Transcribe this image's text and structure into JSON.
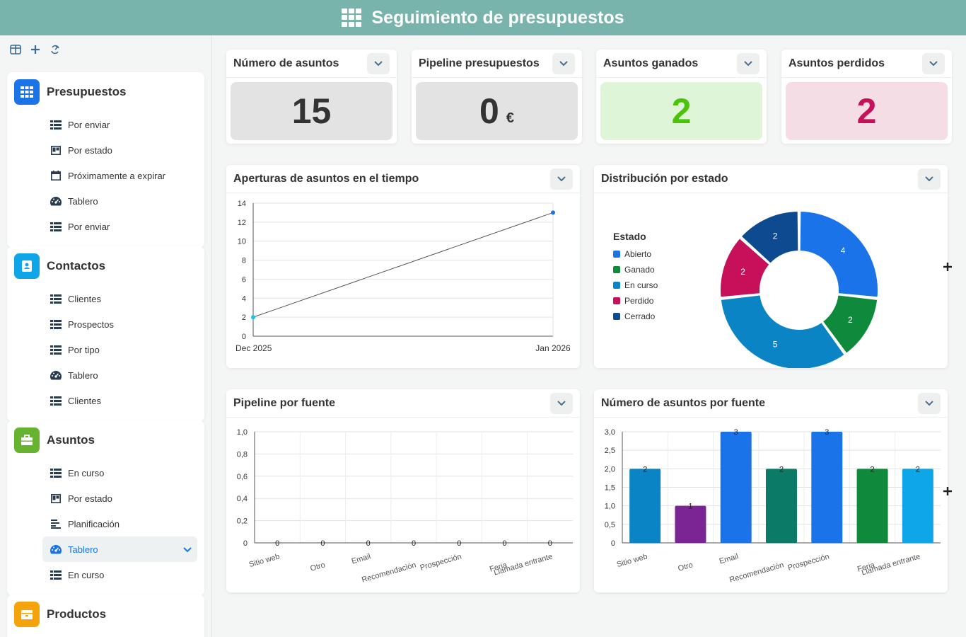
{
  "header": {
    "title": "Seguimiento de presupuestos"
  },
  "sidebar": {
    "sections": [
      {
        "title": "Presupuestos",
        "icon": "grid-icon",
        "color": "#1a73e8",
        "items": [
          {
            "label": "Por enviar",
            "icon": "list-icon"
          },
          {
            "label": "Por estado",
            "icon": "kanban-icon"
          },
          {
            "label": "Próximamente a expirar",
            "icon": "calendar-icon"
          },
          {
            "label": "Tablero",
            "icon": "dashboard-icon"
          },
          {
            "label": "Por enviar",
            "icon": "list-icon"
          }
        ]
      },
      {
        "title": "Contactos",
        "icon": "contact-card-icon",
        "color": "#0ea5e9",
        "items": [
          {
            "label": "Clientes",
            "icon": "list-icon"
          },
          {
            "label": "Prospectos",
            "icon": "list-icon"
          },
          {
            "label": "Por tipo",
            "icon": "list-icon"
          },
          {
            "label": "Tablero",
            "icon": "dashboard-icon"
          },
          {
            "label": "Clientes",
            "icon": "list-icon"
          }
        ]
      },
      {
        "title": "Asuntos",
        "icon": "briefcase-icon",
        "color": "#65b32e",
        "items": [
          {
            "label": "En curso",
            "icon": "list-icon"
          },
          {
            "label": "Por estado",
            "icon": "kanban-icon"
          },
          {
            "label": "Planificación",
            "icon": "gantt-icon"
          },
          {
            "label": "Tablero",
            "icon": "dashboard-icon",
            "active": true
          },
          {
            "label": "En curso",
            "icon": "list-icon"
          }
        ]
      },
      {
        "title": "Productos",
        "icon": "box-icon",
        "color": "#f5a30a",
        "items": []
      }
    ]
  },
  "kpis": [
    {
      "title": "Número de asuntos",
      "value": "15",
      "unit": "",
      "bg": "#e3e3e3",
      "color": "#333333"
    },
    {
      "title": "Pipeline presupuestos",
      "value": "0",
      "unit": "€",
      "bg": "#e3e3e3",
      "color": "#333333"
    },
    {
      "title": "Asuntos ganados",
      "value": "2",
      "unit": "",
      "bg": "#dff5d8",
      "color": "#4bc30b"
    },
    {
      "title": "Asuntos perdidos",
      "value": "2",
      "unit": "",
      "bg": "#f5dde5",
      "color": "#c6115a"
    }
  ],
  "widgets": {
    "aperturas_title": "Aperturas de asuntos en el tiempo",
    "distribucion_title": "Distribución por estado",
    "pipeline_title": "Pipeline por fuente",
    "numero_title": "Número de asuntos por fuente"
  },
  "chart_data": [
    {
      "type": "line",
      "title": "Aperturas de asuntos en el tiempo",
      "x": [
        "Dec 2025",
        "Jan 2026"
      ],
      "series": [
        {
          "values": [
            2,
            13
          ]
        }
      ],
      "ylim": [
        0,
        14
      ],
      "yticks": [
        0,
        2,
        4,
        6,
        8,
        10,
        12,
        14
      ],
      "grid": true
    },
    {
      "type": "pie",
      "title": "Distribución por estado",
      "legend_title": "Estado",
      "legend_position": "left",
      "categories": [
        "Abierto",
        "Ganado",
        "En curso",
        "Perdido",
        "Cerrado"
      ],
      "values": [
        4,
        2,
        5,
        2,
        2
      ],
      "colors": [
        "#1a73e8",
        "#0f8a3c",
        "#0b84c6",
        "#c6115a",
        "#0d4a8f"
      ]
    },
    {
      "type": "bar",
      "title": "Pipeline por fuente",
      "categories": [
        "Sitio web",
        "Otro",
        "Email",
        "Recomendación",
        "Prospección",
        "Feria",
        "Llamada entrante"
      ],
      "values": [
        0,
        0,
        0,
        0,
        0,
        0,
        0
      ],
      "ylim": [
        0,
        1
      ],
      "yticks": [
        "0",
        "0,2",
        "0,4",
        "0,6",
        "0,8",
        "1,0"
      ],
      "grid": true
    },
    {
      "type": "bar",
      "title": "Número de asuntos por fuente",
      "categories": [
        "Sitio web",
        "Otro",
        "Email",
        "Recomendación",
        "Prospección",
        "Feria",
        "Llamada entrante"
      ],
      "values": [
        2,
        1,
        3,
        2,
        3,
        2,
        2
      ],
      "colors": [
        "#0b84c6",
        "#7b2594",
        "#1a73e8",
        "#0b7a66",
        "#1a73e8",
        "#0f8a3c",
        "#0ea5e9"
      ],
      "ylim": [
        0,
        3
      ],
      "yticks": [
        "0",
        "0,5",
        "1,0",
        "1,5",
        "2,0",
        "2,5",
        "3,0"
      ],
      "grid": true
    }
  ]
}
